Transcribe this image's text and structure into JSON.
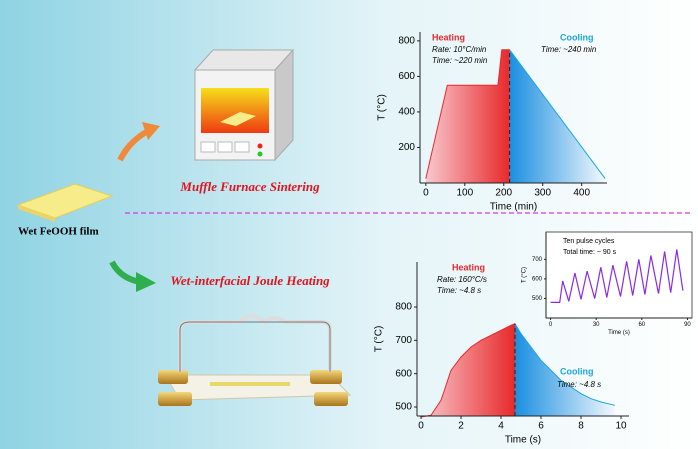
{
  "labels": {
    "film": "Wet FeOOH film",
    "furnace_method": "Muffle Furnace Sintering",
    "joule_method": "Wet-interfacial Joule Heating"
  },
  "chart_data": [
    {
      "type": "line",
      "xlabel": "Time (min)",
      "ylabel": "T (°C)",
      "xlim": [
        -15,
        465
      ],
      "xticks": [
        0,
        100,
        200,
        300,
        400
      ],
      "ylim": [
        0,
        850
      ],
      "yticks": [
        200,
        400,
        600,
        800
      ],
      "annotations": [
        "Heating",
        "Rate: 10°C/min",
        "Time: ~220 min",
        "Cooling",
        "Time: ~240 min"
      ],
      "series": [
        {
          "name": "Heating",
          "color": "#e8292b",
          "fill_colors": [
            "#f7c9cf",
            "#e8292b"
          ],
          "x": [
            0,
            55,
            185,
            195,
            215
          ],
          "values": [
            25,
            550,
            550,
            750,
            750
          ]
        },
        {
          "name": "Cooling",
          "color": "#1aa6e0",
          "fill_colors": [
            "#1a8fe0",
            "#f2f8fd"
          ],
          "x": [
            215,
            460
          ],
          "values": [
            750,
            25
          ]
        }
      ]
    },
    {
      "type": "line",
      "xlabel": "Time (s)",
      "ylabel": "T (°C)",
      "xlim": [
        -0.2,
        10.4
      ],
      "xticks": [
        0,
        2,
        4,
        6,
        8,
        10
      ],
      "ylim": [
        473,
        935
      ],
      "yticks": [
        500,
        600,
        700,
        800
      ],
      "annotations": [
        "Heating",
        "Rate: 160°C/s",
        "Time: ~4.8 s",
        "Cooling",
        "Time: ~4.8 s"
      ],
      "series": [
        {
          "name": "Heating",
          "color": "#e8292b",
          "fill_colors": [
            "#f7c9cf",
            "#e8292b"
          ],
          "x": [
            0,
            0.5,
            1,
            1.5,
            2,
            2.5,
            3,
            3.5,
            4,
            4.5,
            4.7
          ],
          "values": [
            470,
            475,
            520,
            610,
            650,
            680,
            700,
            715,
            730,
            745,
            750
          ]
        },
        {
          "name": "Cooling",
          "color": "#1aa6e0",
          "fill_colors": [
            "#1a8fe0",
            "#f2f8fd"
          ],
          "x": [
            4.7,
            5,
            5.5,
            6,
            6.5,
            7,
            7.5,
            8,
            8.5,
            9,
            9.7
          ],
          "values": [
            750,
            720,
            680,
            640,
            610,
            580,
            560,
            540,
            525,
            515,
            505
          ]
        }
      ]
    },
    {
      "type": "line",
      "xlabel": "Time (s)",
      "ylabel": "T (°C)",
      "frame": true,
      "xlim": [
        -3,
        93
      ],
      "xticks": [
        0,
        30,
        60,
        90
      ],
      "ylim": [
        400,
        840
      ],
      "yticks": [
        500,
        600,
        700
      ],
      "annotations": [
        "Ten pulse cycles",
        "Total time: ~ 90 s"
      ],
      "series": [
        {
          "name": "Pulses",
          "color": "#8a2be2",
          "x": [
            0,
            6,
            8,
            12,
            16,
            20,
            24,
            29,
            33,
            37,
            41,
            46,
            50,
            54,
            58,
            62,
            66,
            71,
            75,
            79,
            83,
            87
          ],
          "values": [
            480,
            480,
            590,
            485,
            630,
            495,
            640,
            500,
            660,
            505,
            670,
            510,
            690,
            515,
            700,
            520,
            720,
            525,
            740,
            530,
            750,
            540
          ]
        }
      ]
    }
  ]
}
